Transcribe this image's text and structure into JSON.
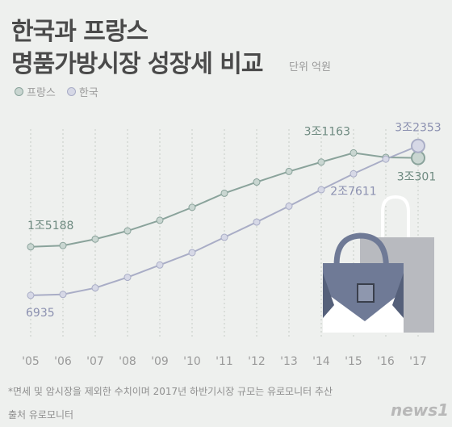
{
  "header": {
    "title_line1": "한국과 프랑스",
    "title_line2": "명품가방시장 성장세 비교",
    "unit": "단위 억원"
  },
  "colors": {
    "france": "#8aa39b",
    "korea": "#a9adc6",
    "background": "#eef0ee"
  },
  "chart_data": {
    "type": "line",
    "categories": [
      "'05",
      "'06",
      "'07",
      "'08",
      "'09",
      "'10",
      "'11",
      "'12",
      "'13",
      "'14",
      "'15",
      "'16",
      "'17"
    ],
    "series": [
      {
        "name": "프랑스",
        "color": "#8aa39b",
        "values": [
          15188,
          15400,
          16500,
          17900,
          19700,
          21900,
          24300,
          26200,
          28000,
          29600,
          31163,
          30400,
          30301
        ]
      },
      {
        "name": "한국",
        "color": "#a9adc6",
        "values": [
          6935,
          7100,
          8200,
          10000,
          12100,
          14200,
          16800,
          19400,
          22100,
          24900,
          27611,
          30100,
          32353
        ]
      }
    ],
    "annotations": [
      {
        "series": 0,
        "index": 0,
        "text": "1조5188"
      },
      {
        "series": 0,
        "index": 10,
        "text": "3조1163"
      },
      {
        "series": 0,
        "index": 12,
        "text": "3조301"
      },
      {
        "series": 1,
        "index": 0,
        "text": "6935"
      },
      {
        "series": 1,
        "index": 10,
        "text": "2조7611"
      },
      {
        "series": 1,
        "index": 12,
        "text": "3조2353"
      }
    ],
    "ylim": [
      5000,
      33000
    ],
    "grid": true,
    "legend": "top-left"
  },
  "footer": {
    "footnote": "*면세 및 암시장을 제외한 수치이며 2017년 하반기시장 규모는 유로모니터 추산",
    "source": "출처 유로모니터",
    "logo": "news1"
  }
}
